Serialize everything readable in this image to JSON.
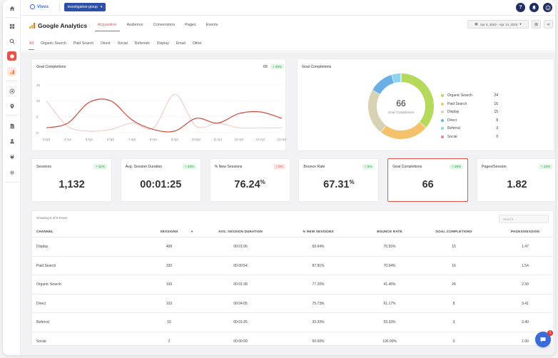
{
  "app": {
    "brand": "Vivos",
    "group_selector": "investigation-group"
  },
  "topbar": {
    "help_label": "?"
  },
  "page": {
    "title": "Google Analytics",
    "tabs": [
      "Acquisition",
      "Audience",
      "Conversions",
      "Pages",
      "Events"
    ],
    "active_tab": "Acquisition",
    "date_range": "Apr 3, 2022 - Apr 14, 2022"
  },
  "filters": {
    "items": [
      "All",
      "Organic Search",
      "Paid Search",
      "Direct",
      "Social",
      "Referrals",
      "Display",
      "Email",
      "Other"
    ],
    "active": "All"
  },
  "line_card": {
    "title": "Goal Completions",
    "value": "66",
    "change": "+ 29%"
  },
  "donut_card": {
    "title": "Goal Completions",
    "center_value": "66",
    "center_label": "Goal Completions"
  },
  "kpis": [
    {
      "label": "Sessions",
      "value": "1,132",
      "suffix": "",
      "change": "+ 31%",
      "direction": "up"
    },
    {
      "label": "Avg. Session Duration",
      "value": "00:01:25",
      "suffix": "",
      "change": "+ 33%",
      "direction": "up"
    },
    {
      "label": "% New Sessions",
      "value": "76.24",
      "suffix": "%",
      "change": "+ 0%",
      "direction": "down"
    },
    {
      "label": "Bounce Rate",
      "value": "67.31",
      "suffix": "%",
      "change": "+ 5%",
      "direction": "up"
    },
    {
      "label": "Goal Completions",
      "value": "66",
      "suffix": "",
      "change": "+ 29%",
      "direction": "up"
    },
    {
      "label": "Pages/Session",
      "value": "1.82",
      "suffix": "",
      "change": "+ 10%",
      "direction": "up"
    }
  ],
  "table": {
    "caption": "Showing 6 of 6 Rows",
    "search_placeholder": "Search",
    "columns": [
      "CHANNEL",
      "SESSIONS",
      "AVG. SESSION DURATION",
      "% NEW SESSIONS",
      "BOUNCE RATE",
      "GOAL COMPLETIONS",
      "PAGES/SESSION"
    ],
    "rows": [
      [
        "Display",
        "499",
        "00:01:06",
        "69.94%",
        "76.55%",
        "15",
        "1.47"
      ],
      [
        "Paid Search",
        "320",
        "00:00:54",
        "87.81%",
        "70.94%",
        "16",
        "1.54"
      ],
      [
        "Organic Search",
        "193",
        "00:01:38",
        "77.20%",
        "41.45%",
        "24",
        "2.30"
      ],
      [
        "Direct",
        "103",
        "00:04:05",
        "75.73%",
        "61.17%",
        "8",
        "3.41"
      ],
      [
        "Referral",
        "15",
        "00:01:26",
        "33.33%",
        "53.33%",
        "3",
        "2.40"
      ],
      [
        "Social",
        "2",
        "00:00:00",
        "50.00%",
        "100.00%",
        "0",
        "1.00"
      ]
    ]
  },
  "chat": {
    "badge": "1"
  },
  "colors": {
    "accent": "#e5534b",
    "primary_navy": "#1f2d63",
    "brand_blue": "#2c4fa8",
    "positive": "#2a9d4a"
  },
  "chart_data": [
    {
      "type": "line",
      "title": "Goal Completions",
      "x": [
        "3 Apr",
        "4 Apr",
        "5 Apr",
        "6 Apr",
        "7 Apr",
        "8 Apr",
        "9 Apr",
        "10 Apr",
        "11 Apr",
        "12 Apr",
        "13 Apr",
        "14 Apr"
      ],
      "ylim": [
        0,
        15
      ],
      "yticks": [
        0,
        5,
        10,
        15
      ],
      "grid": true,
      "series": [
        {
          "color": "#c94a3b",
          "values": [
            1.5,
            3,
            9.5,
            10,
            4,
            1,
            0.5,
            4.5,
            3,
            6,
            6.5,
            4.5
          ]
        },
        {
          "color": "#f1cfc8",
          "values": [
            10,
            2,
            0.5,
            1,
            3,
            1.5,
            12,
            2,
            3,
            1.5,
            1.5,
            1.5
          ]
        }
      ]
    },
    {
      "type": "pie",
      "title": "Goal Completions",
      "categories": [
        "Organic Search",
        "Paid Search",
        "Display",
        "Direct",
        "Referral",
        "Social"
      ],
      "values": [
        24,
        16,
        15,
        8,
        3,
        0
      ],
      "colors": [
        "#b5d95b",
        "#f5c26b",
        "#d8d2b4",
        "#6aaee6",
        "#8fd3ee",
        "#e27fb4"
      ]
    }
  ]
}
